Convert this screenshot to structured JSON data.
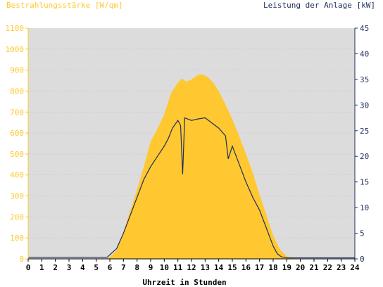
{
  "chart_data": {
    "type": "area",
    "left_axis_label": "Bestrahlungsstärke [W/qm]",
    "right_axis_label": "Leistung der Anlage [kW]",
    "xlabel": "Uhrzeit in Stunden",
    "xlim": [
      0,
      24
    ],
    "ylim_left": [
      0,
      1100
    ],
    "ylim_right": [
      0,
      45
    ],
    "x_ticks": [
      "0",
      "1",
      "2",
      "3",
      "4",
      "5",
      "6",
      "7",
      "8",
      "9",
      "10",
      "11",
      "12",
      "13",
      "14",
      "15",
      "16",
      "17",
      "18",
      "19",
      "20",
      "21",
      "22",
      "23",
      "24"
    ],
    "y_left_ticks": [
      "0",
      "100",
      "200",
      "300",
      "400",
      "500",
      "600",
      "700",
      "800",
      "900",
      "1000",
      "1100"
    ],
    "y_right_ticks": [
      "0",
      "5",
      "10",
      "15",
      "20",
      "25",
      "30",
      "35",
      "40",
      "45"
    ],
    "grid": true,
    "colors": {
      "irradiance": "#ffc830",
      "power": "#1f2d5c",
      "plot_bg": "#dcdcdc",
      "left_text": "#ffc830",
      "right_text": "#1f2d5c",
      "axis_text": "#000000"
    },
    "series": [
      {
        "name": "Bestrahlungsstärke [W/qm]",
        "axis": "left",
        "kind": "area",
        "x": [
          0,
          5.8,
          6.0,
          6.5,
          7.0,
          7.5,
          8.0,
          8.5,
          9.0,
          9.5,
          10.0,
          10.5,
          11.0,
          11.3,
          11.6,
          12.0,
          12.3,
          12.6,
          13.0,
          13.3,
          13.6,
          14.0,
          14.5,
          15.0,
          15.5,
          16.0,
          16.5,
          17.0,
          17.5,
          18.0,
          18.5,
          19.0,
          19.5,
          20.0,
          24
        ],
        "y": [
          0,
          0,
          10,
          40,
          130,
          230,
          330,
          440,
          560,
          620,
          690,
          790,
          840,
          860,
          845,
          855,
          870,
          880,
          875,
          860,
          840,
          800,
          735,
          665,
          585,
          500,
          410,
          305,
          210,
          110,
          45,
          12,
          3,
          0,
          0
        ]
      },
      {
        "name": "Leistung der Anlage [kW]",
        "axis": "right",
        "kind": "line",
        "x": [
          0,
          5.8,
          6.0,
          6.5,
          7.0,
          7.5,
          8.0,
          8.5,
          9.0,
          9.5,
          10.0,
          10.3,
          10.6,
          11.0,
          11.2,
          11.35,
          11.5,
          12.0,
          12.5,
          13.0,
          13.5,
          14.0,
          14.5,
          14.7,
          15.0,
          15.5,
          16.0,
          16.5,
          17.0,
          17.5,
          18.0,
          18.3,
          18.6,
          19.0,
          24
        ],
        "y": [
          0.3,
          0.3,
          0.8,
          2.0,
          5.0,
          8.5,
          12.0,
          15.5,
          18.0,
          20.0,
          22.0,
          23.5,
          25.5,
          27.0,
          26.0,
          16.5,
          27.5,
          27.0,
          27.3,
          27.5,
          26.5,
          25.5,
          24.0,
          19.5,
          22.0,
          18.5,
          15.0,
          12.0,
          9.5,
          6.0,
          2.5,
          1.0,
          0.4,
          0.2,
          0.2
        ]
      }
    ]
  }
}
